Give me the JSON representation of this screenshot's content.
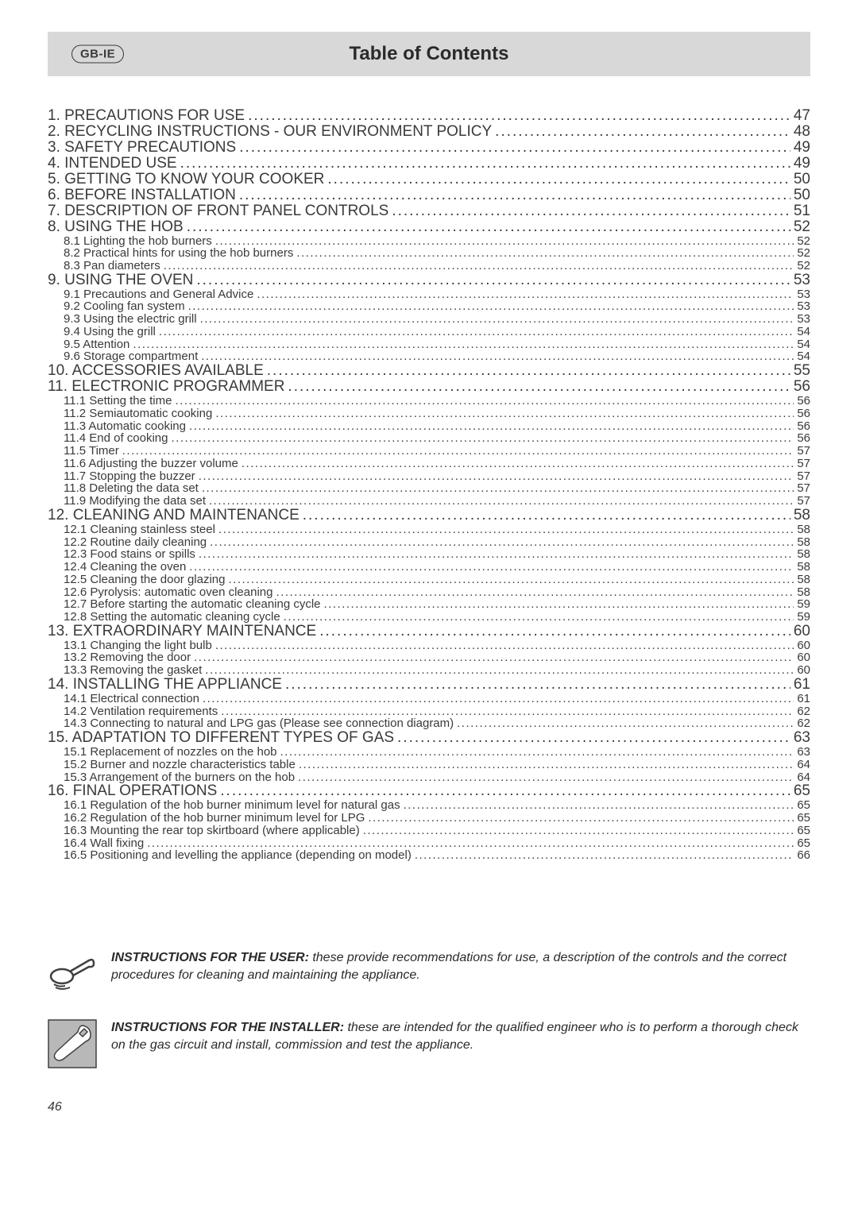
{
  "colors": {
    "text": "#3a3a3a",
    "header_bg": "#d8d8d8",
    "icon_bg": "#b8b8b8",
    "icon_stroke": "#404040",
    "page_bg": "#ffffff"
  },
  "badge": "GB-IE",
  "title": "Table of Contents",
  "page_number": "46",
  "toc": [
    {
      "level": "main",
      "label": "1. PRECAUTIONS FOR USE",
      "page": "47"
    },
    {
      "level": "main",
      "label": "2. RECYCLING INSTRUCTIONS - OUR ENVIRONMENT POLICY",
      "page": "48"
    },
    {
      "level": "main",
      "label": "3. SAFETY PRECAUTIONS",
      "page": "49"
    },
    {
      "level": "main",
      "label": "4. INTENDED USE",
      "page": "49"
    },
    {
      "level": "main",
      "label": "5. GETTING TO KNOW YOUR COOKER",
      "page": "50"
    },
    {
      "level": "main",
      "label": "6. BEFORE INSTALLATION",
      "page": "50"
    },
    {
      "level": "main",
      "label": "7. DESCRIPTION OF FRONT PANEL CONTROLS",
      "page": "51"
    },
    {
      "level": "main",
      "label": "8. USING THE HOB",
      "page": "52"
    },
    {
      "level": "sub",
      "label": "8.1 Lighting the hob burners",
      "page": "52"
    },
    {
      "level": "sub",
      "label": "8.2 Practical hints for using the hob burners",
      "page": "52"
    },
    {
      "level": "sub",
      "label": "8.3 Pan diameters",
      "page": "52"
    },
    {
      "level": "main",
      "label": "9. USING THE OVEN",
      "page": "53"
    },
    {
      "level": "sub",
      "label": "9.1 Precautions and General Advice",
      "page": "53"
    },
    {
      "level": "sub",
      "label": "9.2 Cooling fan system",
      "page": "53"
    },
    {
      "level": "sub",
      "label": "9.3 Using the electric grill",
      "page": "53"
    },
    {
      "level": "sub",
      "label": "9.4 Using the grill",
      "page": "54"
    },
    {
      "level": "sub",
      "label": "9.5 Attention",
      "page": "54"
    },
    {
      "level": "sub",
      "label": "9.6 Storage compartment",
      "page": "54"
    },
    {
      "level": "main",
      "label": "10. ACCESSORIES AVAILABLE",
      "page": "55"
    },
    {
      "level": "main",
      "label": "11. ELECTRONIC PROGRAMMER",
      "page": "56"
    },
    {
      "level": "sub",
      "label": "11.1 Setting the time",
      "page": "56"
    },
    {
      "level": "sub",
      "label": "11.2 Semiautomatic cooking",
      "page": "56"
    },
    {
      "level": "sub",
      "label": "11.3 Automatic cooking",
      "page": "56"
    },
    {
      "level": "sub",
      "label": "11.4 End of cooking",
      "page": "56"
    },
    {
      "level": "sub",
      "label": "11.5 Timer",
      "page": "57"
    },
    {
      "level": "sub",
      "label": "11.6 Adjusting the buzzer volume",
      "page": "57"
    },
    {
      "level": "sub",
      "label": "11.7 Stopping the buzzer",
      "page": "57"
    },
    {
      "level": "sub",
      "label": "11.8 Deleting the data set",
      "page": "57"
    },
    {
      "level": "sub",
      "label": "11.9 Modifying the data set",
      "page": "57"
    },
    {
      "level": "main",
      "label": "12. CLEANING AND MAINTENANCE",
      "page": "58"
    },
    {
      "level": "sub",
      "label": "12.1 Cleaning stainless steel",
      "page": "58"
    },
    {
      "level": "sub",
      "label": "12.2 Routine daily cleaning",
      "page": "58"
    },
    {
      "level": "sub",
      "label": "12.3 Food stains or spills",
      "page": "58"
    },
    {
      "level": "sub",
      "label": "12.4 Cleaning the oven",
      "page": "58"
    },
    {
      "level": "sub",
      "label": "12.5 Cleaning the door glazing",
      "page": "58"
    },
    {
      "level": "sub",
      "label": "12.6 Pyrolysis: automatic oven cleaning",
      "page": "58"
    },
    {
      "level": "sub",
      "label": "12.7 Before starting the automatic cleaning cycle",
      "page": "59"
    },
    {
      "level": "sub",
      "label": "12.8 Setting the automatic cleaning cycle",
      "page": "59"
    },
    {
      "level": "main",
      "label": "13. EXTRAORDINARY MAINTENANCE",
      "page": "60"
    },
    {
      "level": "sub",
      "label": "13.1 Changing the light bulb",
      "page": "60"
    },
    {
      "level": "sub",
      "label": "13.2 Removing the door",
      "page": "60"
    },
    {
      "level": "sub",
      "label": "13.3 Removing the gasket",
      "page": "60"
    },
    {
      "level": "main",
      "label": "14. INSTALLING THE APPLIANCE",
      "page": "61"
    },
    {
      "level": "sub",
      "label": "14.1 Electrical connection",
      "page": "61"
    },
    {
      "level": "sub",
      "label": "14.2 Ventilation requirements",
      "page": "62"
    },
    {
      "level": "sub",
      "label": "14.3 Connecting to natural and LPG gas (Please see connection diagram)",
      "page": "62"
    },
    {
      "level": "main",
      "label": "15. ADAPTATION TO DIFFERENT TYPES OF GAS",
      "page": "63"
    },
    {
      "level": "sub",
      "label": "15.1 Replacement of nozzles on the hob",
      "page": "63"
    },
    {
      "level": "sub",
      "label": "15.2 Burner and nozzle characteristics table",
      "page": "64"
    },
    {
      "level": "sub",
      "label": "15.3 Arrangement of the burners on the hob",
      "page": "64"
    },
    {
      "level": "main",
      "label": "16. FINAL OPERATIONS",
      "page": "65"
    },
    {
      "level": "sub",
      "label": "16.1 Regulation of the hob burner minimum level for natural gas",
      "page": "65"
    },
    {
      "level": "sub",
      "label": "16.2 Regulation of the hob burner minimum level for LPG",
      "page": "65"
    },
    {
      "level": "sub",
      "label": "16.3 Mounting the rear top skirtboard (where applicable)",
      "page": "65"
    },
    {
      "level": "sub",
      "label": "16.4 Wall fixing",
      "page": "65"
    },
    {
      "level": "sub",
      "label": "16.5 Positioning and levelling the appliance (depending on model)",
      "page": "66"
    }
  ],
  "notes": {
    "user": {
      "heading": "INSTRUCTIONS FOR THE USER:",
      "body": " these provide recommendations for use, a description of the controls and the correct procedures for cleaning and maintaining the appliance."
    },
    "installer": {
      "heading": "INSTRUCTIONS FOR THE INSTALLER:",
      "body": " these are intended for the qualified engineer who is to perform a thorough check on the gas circuit and install, commission and test the appliance."
    }
  }
}
